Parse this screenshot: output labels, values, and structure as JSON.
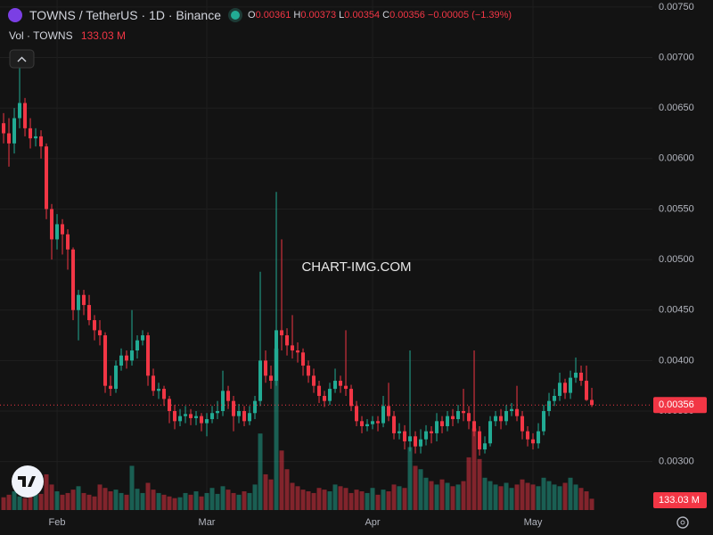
{
  "chart_data": {
    "type": "candlestick",
    "title": "TOWNS / TetherUS · 1D · Binance",
    "watermark": "CHART-IMG.COM",
    "legend_letters": [
      "O",
      "H",
      "L",
      "C"
    ],
    "change": {
      "value": -5e-05,
      "label": "−0.00005"
    },
    "change_pct": {
      "value": -1.39,
      "label": "(−1.39%)"
    },
    "up_color": "#22ab94",
    "down_color": "#f23645",
    "xlim": [
      -0.67,
      121.33
    ],
    "xticks": [
      {
        "value": 10,
        "label": "Feb"
      },
      {
        "value": 38,
        "label": "Mar"
      },
      {
        "value": 69,
        "label": "Apr"
      },
      {
        "value": 99,
        "label": "May"
      }
    ],
    "ylim": [
      0.00252,
      0.00757
    ],
    "yticks": [
      {
        "value": 0.003,
        "label": "0.00300"
      },
      {
        "value": 0.0035,
        "label": "0.00350"
      },
      {
        "value": 0.004,
        "label": "0.00400"
      },
      {
        "value": 0.0045,
        "label": "0.00450"
      },
      {
        "value": 0.005,
        "label": "0.00500"
      },
      {
        "value": 0.0055,
        "label": "0.00550"
      },
      {
        "value": 0.006,
        "label": "0.00600"
      },
      {
        "value": 0.0065,
        "label": "0.00650"
      },
      {
        "value": 0.007,
        "label": "0.00700"
      },
      {
        "value": 0.0075,
        "label": "0.00750"
      }
    ],
    "grid": true,
    "open": [
      0.00635,
      0.00625,
      0.00615,
      0.0064,
      0.00655,
      0.0063,
      0.0062,
      0.00622,
      0.00612,
      0.0055,
      0.0052,
      0.00535,
      0.00525,
      0.0051,
      0.0045,
      0.00465,
      0.00455,
      0.0044,
      0.0043,
      0.00425,
      0.00375,
      0.00372,
      0.00395,
      0.00405,
      0.004,
      0.0041,
      0.0042,
      0.00425,
      0.00385,
      0.0037,
      0.00372,
      0.00362,
      0.0035,
      0.0034,
      0.00345,
      0.00347,
      0.00343,
      0.00345,
      0.00338,
      0.00342,
      0.00348,
      0.0035,
      0.0037,
      0.0036,
      0.00345,
      0.0035,
      0.0034,
      0.00348,
      0.0036,
      0.004,
      0.00385,
      0.0038,
      0.0043,
      0.00425,
      0.00415,
      0.0041,
      0.00408,
      0.00395,
      0.00385,
      0.00375,
      0.00365,
      0.0036,
      0.00372,
      0.0038,
      0.00375,
      0.00372,
      0.00355,
      0.0034,
      0.00335,
      0.00337,
      0.0034,
      0.00338,
      0.00355,
      0.00345,
      0.00328,
      0.0033,
      0.0032,
      0.00325,
      0.00315,
      0.00322,
      0.0033,
      0.00328,
      0.0034,
      0.00335,
      0.00345,
      0.00342,
      0.0035,
      0.00348,
      0.0034,
      0.0033,
      0.00312,
      0.00318,
      0.0034,
      0.00345,
      0.0034,
      0.0035,
      0.00352,
      0.00345,
      0.0033,
      0.00322,
      0.00318,
      0.0033,
      0.0035,
      0.0036,
      0.00365,
      0.00378,
      0.00368,
      0.00383,
      0.00388,
      0.0038,
      0.00361
    ],
    "high": [
      0.00645,
      0.0064,
      0.0065,
      0.00691,
      0.0066,
      0.0064,
      0.0063,
      0.00628,
      0.00615,
      0.00555,
      0.00545,
      0.0054,
      0.0053,
      0.00512,
      0.0047,
      0.0047,
      0.00465,
      0.00445,
      0.0044,
      0.00428,
      0.00385,
      0.004,
      0.00412,
      0.0041,
      0.0045,
      0.00425,
      0.0043,
      0.00428,
      0.00392,
      0.00378,
      0.00375,
      0.00365,
      0.00356,
      0.00352,
      0.00355,
      0.00352,
      0.0035,
      0.00348,
      0.00348,
      0.00355,
      0.0036,
      0.0039,
      0.00375,
      0.00365,
      0.00357,
      0.00355,
      0.00355,
      0.00365,
      0.00488,
      0.0041,
      0.00395,
      0.00567,
      0.0052,
      0.00432,
      0.00445,
      0.00418,
      0.00412,
      0.004,
      0.00392,
      0.0038,
      0.0037,
      0.00378,
      0.00392,
      0.00385,
      0.0043,
      0.00376,
      0.0036,
      0.00345,
      0.00342,
      0.00345,
      0.00345,
      0.00365,
      0.00378,
      0.0035,
      0.00338,
      0.00336,
      0.0041,
      0.0033,
      0.00332,
      0.00336,
      0.00335,
      0.00348,
      0.00345,
      0.0035,
      0.00352,
      0.00356,
      0.00372,
      0.00355,
      0.0041,
      0.00335,
      0.00325,
      0.00345,
      0.0035,
      0.00352,
      0.00356,
      0.00358,
      0.00375,
      0.0035,
      0.00335,
      0.00328,
      0.00338,
      0.00356,
      0.00368,
      0.00372,
      0.00388,
      0.00382,
      0.0039,
      0.00403,
      0.00395,
      0.00395,
      0.00373
    ],
    "low": [
      0.00615,
      0.00592,
      0.00605,
      0.0063,
      0.00622,
      0.0061,
      0.00612,
      0.006,
      0.0054,
      0.005,
      0.0051,
      0.00505,
      0.0049,
      0.0044,
      0.0042,
      0.00445,
      0.00435,
      0.0042,
      0.00415,
      0.00368,
      0.00365,
      0.00368,
      0.0039,
      0.00392,
      0.00395,
      0.00402,
      0.00415,
      0.00375,
      0.00365,
      0.00362,
      0.00355,
      0.00338,
      0.00332,
      0.00335,
      0.00338,
      0.00336,
      0.00336,
      0.0033,
      0.00325,
      0.00338,
      0.00342,
      0.00345,
      0.00352,
      0.0033,
      0.00338,
      0.00335,
      0.00336,
      0.00342,
      0.00355,
      0.00378,
      0.00372,
      0.00375,
      0.0041,
      0.00405,
      0.00402,
      0.00398,
      0.00385,
      0.00378,
      0.00368,
      0.00358,
      0.00354,
      0.00356,
      0.00368,
      0.00368,
      0.00365,
      0.0035,
      0.00335,
      0.00328,
      0.0033,
      0.00332,
      0.0033,
      0.00334,
      0.0034,
      0.00322,
      0.00322,
      0.00312,
      0.0031,
      0.00308,
      0.00308,
      0.00316,
      0.00318,
      0.0032,
      0.00328,
      0.0033,
      0.00335,
      0.00338,
      0.0034,
      0.00332,
      0.00325,
      0.00306,
      0.00308,
      0.00315,
      0.00335,
      0.00332,
      0.00336,
      0.00345,
      0.0034,
      0.00322,
      0.00315,
      0.00312,
      0.00313,
      0.00326,
      0.00345,
      0.00355,
      0.0036,
      0.00362,
      0.00362,
      0.00378,
      0.00375,
      0.0036,
      0.00354
    ],
    "close": [
      0.00625,
      0.00615,
      0.0064,
      0.00655,
      0.0063,
      0.0062,
      0.00622,
      0.00612,
      0.0055,
      0.0052,
      0.00535,
      0.00525,
      0.0051,
      0.0045,
      0.00465,
      0.00455,
      0.0044,
      0.0043,
      0.00425,
      0.00375,
      0.00372,
      0.00395,
      0.00405,
      0.004,
      0.0041,
      0.0042,
      0.00425,
      0.00385,
      0.0037,
      0.00372,
      0.00362,
      0.0035,
      0.0034,
      0.00345,
      0.00347,
      0.00343,
      0.00345,
      0.00338,
      0.00342,
      0.00348,
      0.0035,
      0.0037,
      0.0036,
      0.00345,
      0.0035,
      0.0034,
      0.00348,
      0.0036,
      0.004,
      0.00385,
      0.0038,
      0.0043,
      0.00425,
      0.00415,
      0.0041,
      0.00408,
      0.00395,
      0.00385,
      0.00375,
      0.00365,
      0.0036,
      0.00372,
      0.0038,
      0.00375,
      0.00372,
      0.00355,
      0.0034,
      0.00335,
      0.00337,
      0.0034,
      0.00338,
      0.00355,
      0.00345,
      0.00328,
      0.0033,
      0.0032,
      0.00325,
      0.00315,
      0.00322,
      0.0033,
      0.00328,
      0.0034,
      0.00335,
      0.00345,
      0.00342,
      0.0035,
      0.00348,
      0.0034,
      0.0033,
      0.00312,
      0.00318,
      0.0034,
      0.00345,
      0.0034,
      0.0035,
      0.00352,
      0.00345,
      0.0033,
      0.00322,
      0.00318,
      0.0033,
      0.0035,
      0.0036,
      0.00365,
      0.00378,
      0.00368,
      0.00383,
      0.00388,
      0.0038,
      0.00361,
      0.00356
    ],
    "volume": {
      "name": "Vol · TOWNS",
      "ylim": [
        0,
        6000
      ],
      "last_label": "133.03 M",
      "values": [
        150,
        180,
        220,
        160,
        140,
        200,
        260,
        190,
        420,
        300,
        220,
        180,
        200,
        240,
        280,
        200,
        180,
        160,
        300,
        260,
        220,
        240,
        200,
        180,
        520,
        250,
        200,
        320,
        240,
        200,
        180,
        160,
        140,
        150,
        200,
        180,
        220,
        160,
        200,
        260,
        190,
        280,
        240,
        200,
        180,
        220,
        200,
        300,
        900,
        420,
        360,
        1900,
        700,
        480,
        320,
        280,
        240,
        220,
        200,
        260,
        240,
        220,
        300,
        280,
        260,
        200,
        240,
        220,
        200,
        260,
        180,
        240,
        220,
        300,
        280,
        260,
        740,
        520,
        480,
        380,
        340,
        300,
        360,
        320,
        280,
        300,
        340,
        620,
        960,
        600,
        380,
        340,
        300,
        280,
        320,
        260,
        300,
        360,
        320,
        300,
        280,
        380,
        340,
        300,
        280,
        320,
        380,
        300,
        260,
        220,
        133.03
      ]
    }
  }
}
